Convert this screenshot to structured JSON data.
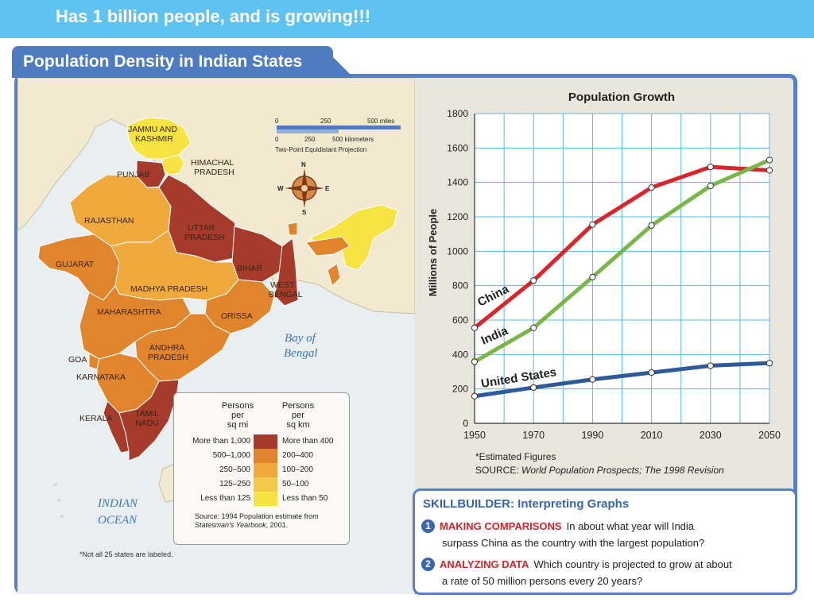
{
  "slide": {
    "title": "Has 1 billion people, and is growing!!!"
  },
  "map": {
    "title": "Population Density in Indian States",
    "scale_bar": {
      "miles_labels": [
        "0",
        "250",
        "500 miles"
      ],
      "km_labels": [
        "0",
        "250",
        "500 kilometers"
      ],
      "projection": "Two-Point Equidistant Projection"
    },
    "compass": [
      "N",
      "S",
      "E",
      "W"
    ],
    "states": [
      {
        "name": "JAMMU AND KASHMIR",
        "density": "Less than 50"
      },
      {
        "name": "HIMACHAL PRADESH",
        "density": "Less than 50"
      },
      {
        "name": "PUNJAB",
        "density": "More than 400"
      },
      {
        "name": "RAJASTHAN",
        "density": "100–200"
      },
      {
        "name": "UTTAR PRADESH",
        "density": "More than 400"
      },
      {
        "name": "BIHAR",
        "density": "More than 400"
      },
      {
        "name": "WEST BENGAL",
        "density": "More than 400"
      },
      {
        "name": "GUJARAT",
        "density": "200–400"
      },
      {
        "name": "MADHYA PRADESH",
        "density": "100–200"
      },
      {
        "name": "MAHARASHTRA",
        "density": "200–400"
      },
      {
        "name": "ORISSA",
        "density": "200–400"
      },
      {
        "name": "ANDHRA PRADESH",
        "density": "200–400"
      },
      {
        "name": "GOA",
        "density": "200–400"
      },
      {
        "name": "KARNATAKA",
        "density": "200–400"
      },
      {
        "name": "KERALA",
        "density": "More than 400"
      },
      {
        "name": "TAMIL NADU",
        "density": "More than 400"
      }
    ],
    "water_labels": {
      "bay": "Bay of Bengal",
      "ocean": "INDIAN OCEAN"
    },
    "colors": {
      "land": "#f2ead0",
      "water": "#e9eef0",
      "more_400": "#a63b2c",
      "200_400": "#e1852d",
      "100_200": "#f0a93c",
      "50_100": "#f5c94a",
      "less_50": "#f7e341"
    },
    "legend": {
      "col_mi_header": "Persons\nper\nsq mi",
      "col_km_header": "Persons\nper\nsq km",
      "rows": [
        {
          "mi": "More than 1,000",
          "km": "More than 400",
          "color": "#a63b2c"
        },
        {
          "mi": "500–1,000",
          "km": "200–400",
          "color": "#e1852d"
        },
        {
          "mi": "250–500",
          "km": "100–200",
          "color": "#f0a93c"
        },
        {
          "mi": "125–250",
          "km": "50–100",
          "color": "#f5c94a"
        },
        {
          "mi": "Less than 125",
          "km": "Less than 50",
          "color": "#f7e341"
        }
      ],
      "source_prefix": "Source: 1994 Population estimate from",
      "source_title": "Statesman's Yearbook",
      "source_suffix": ", 2001."
    },
    "note": "*Not all 25 states are labeled."
  },
  "chart_data": {
    "type": "line",
    "title": "Population Growth",
    "ylabel": "Millions of People",
    "xlabel": "",
    "x": [
      1950,
      1970,
      1990,
      2010,
      2030,
      2050
    ],
    "xlim": [
      1950,
      2050
    ],
    "ylim": [
      0,
      1800
    ],
    "y_ticks": [
      0,
      200,
      400,
      600,
      800,
      1000,
      1200,
      1400,
      1600,
      1800
    ],
    "grid": true,
    "series": [
      {
        "name": "China",
        "color": "#d8262b",
        "values": [
          555,
          830,
          1155,
          1370,
          1490,
          1470
        ]
      },
      {
        "name": "India",
        "color": "#7ab648",
        "values": [
          358,
          555,
          850,
          1150,
          1380,
          1530
        ]
      },
      {
        "name": "United States",
        "color": "#2f5a9a",
        "values": [
          158,
          208,
          255,
          295,
          335,
          350
        ]
      }
    ],
    "estimated_note": "*Estimated Figures",
    "source_prefix": "SOURCE: ",
    "source_title": "World Population Prospects; The 1998 Revision"
  },
  "skillbuilder": {
    "title_prefix": "SKILLBUILDER: ",
    "title_label": "Interpreting Graphs",
    "questions": [
      {
        "num": "1",
        "heading": "MAKING COMPARISONS",
        "text": "In about what year will India",
        "text2": "surpass China as the country with the largest population?"
      },
      {
        "num": "2",
        "heading": "ANALYZING DATA",
        "text": "Which country is projected to grow at about",
        "text2": "a rate of 50 million persons every 20 years?"
      }
    ]
  }
}
